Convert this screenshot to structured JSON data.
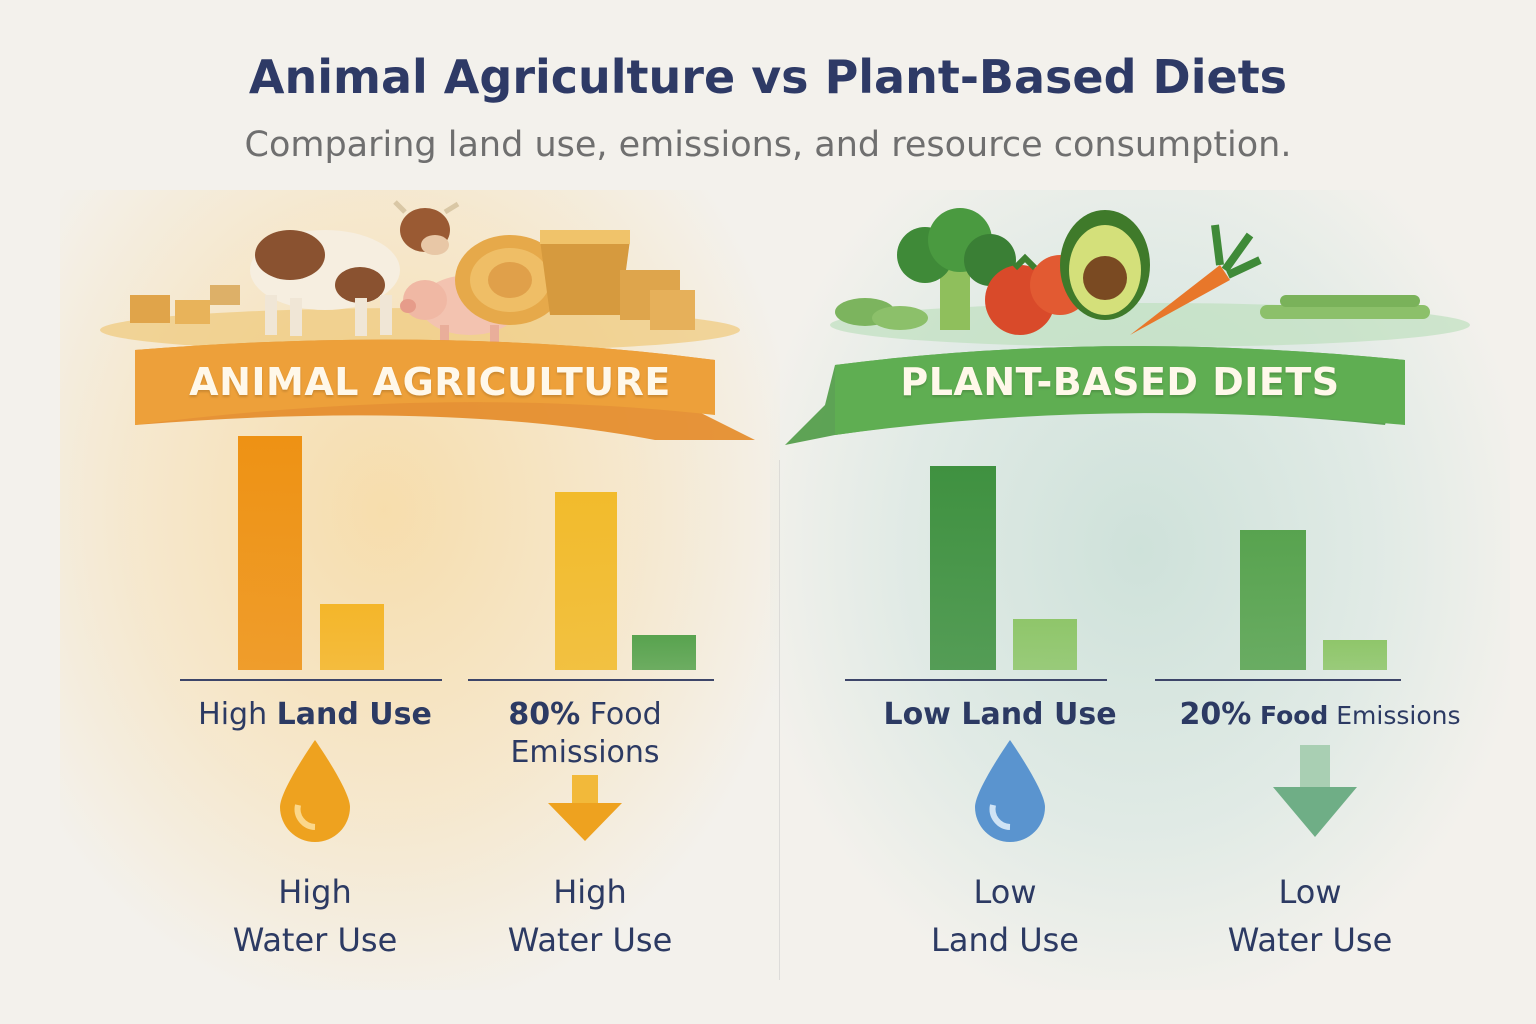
{
  "header": {
    "title": "Animal Agriculture vs Plant-Based Diets",
    "subtitle": "Comparing land use, emissions, and resource consumption."
  },
  "panels": {
    "animal": {
      "banner": "ANIMAL AGRICULTURE",
      "chart_a_label_plain": "High ",
      "chart_a_label_bold": "Land Use",
      "chart_b_label_bold": "80%",
      "chart_b_label_plain": " Food Emissions",
      "stat_left_line1": "High",
      "stat_left_line2": "Water Use",
      "stat_right_line1": "High",
      "stat_right_line2": "Water Use",
      "icons": [
        "water-drop-icon",
        "down-arrow-icon"
      ]
    },
    "plant": {
      "banner": "PLANT-BASED DIETS",
      "chart_a_label": "Low Land Use",
      "chart_b_label_bold": "20%",
      "chart_b_label_mid": " Food",
      "chart_b_label_plain": " Emissions",
      "stat_left_line1": "Low",
      "stat_left_line2": "Land Use",
      "stat_right_line1": "Low",
      "stat_right_line2": "Water Use",
      "icons": [
        "water-drop-icon",
        "down-arrow-icon"
      ]
    }
  },
  "colors": {
    "orange_dark": "#ee9214",
    "orange_light": "#f4b62a",
    "yellow": "#f2bb2c",
    "green_dark": "#3f9140",
    "green_light": "#8fc66a",
    "green_mid": "#58a34f",
    "drop_blue": "#5a94cf",
    "title": "#2e3a66"
  },
  "chart_data": [
    {
      "type": "bar",
      "categories": [
        "",
        ""
      ],
      "values": [
        1.0,
        0.28
      ],
      "xlabel": "",
      "ylabel": ""
    },
    {
      "type": "bar",
      "categories": [
        "",
        ""
      ],
      "values": [
        0.76,
        0.15
      ],
      "xlabel": "",
      "ylabel": ""
    },
    {
      "type": "bar",
      "categories": [
        "",
        ""
      ],
      "values": [
        0.87,
        0.22
      ],
      "xlabel": "",
      "ylabel": ""
    },
    {
      "type": "bar",
      "categories": [
        "",
        ""
      ],
      "values": [
        0.6,
        0.13
      ],
      "xlabel": "",
      "ylabel": ""
    }
  ]
}
